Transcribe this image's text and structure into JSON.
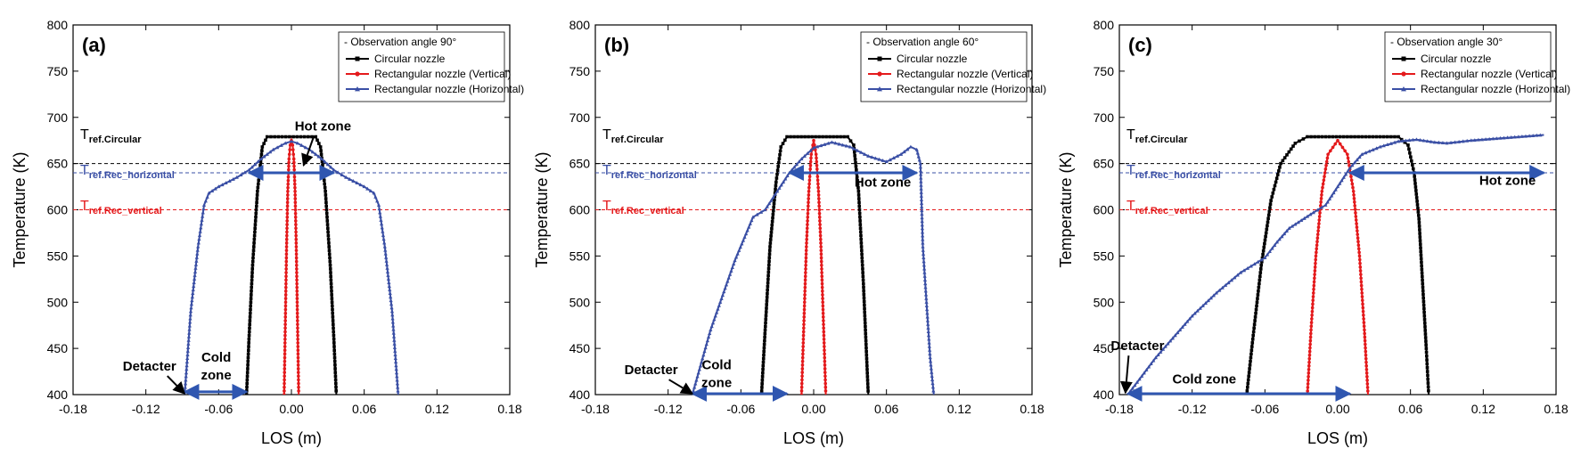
{
  "chart_data": [
    {
      "type": "line",
      "panel_label": "(a)",
      "xlabel": "LOS (m)",
      "ylabel": "Temperature (K)",
      "xlim": [
        -0.18,
        0.18
      ],
      "ylim": [
        400,
        800
      ],
      "xticks": [
        "-0.18",
        "-0.12",
        "-0.06",
        "0.00",
        "0.06",
        "0.12",
        "0.18"
      ],
      "yticks": [
        "400",
        "450",
        "500",
        "550",
        "600",
        "650",
        "700",
        "750",
        "800"
      ],
      "grid": false,
      "legend_position": "top-right",
      "legend_title": "- Observation angle 90°",
      "series": [
        {
          "name": "Circular nozzle",
          "color": "#000000",
          "marker": "square",
          "points": [
            [
              -0.037,
              400
            ],
            [
              -0.035,
              460
            ],
            [
              -0.032,
              540
            ],
            [
              -0.028,
              620
            ],
            [
              -0.024,
              668
            ],
            [
              -0.02,
              679
            ],
            [
              0.02,
              679
            ],
            [
              0.024,
              668
            ],
            [
              0.028,
              620
            ],
            [
              0.032,
              540
            ],
            [
              0.035,
              460
            ],
            [
              0.037,
              400
            ]
          ]
        },
        {
          "name": "Rectangular nozzle (Vertical)",
          "color": "#e41a1c",
          "marker": "circle",
          "points": [
            [
              -0.006,
              400
            ],
            [
              -0.005,
              480
            ],
            [
              -0.004,
              560
            ],
            [
              -0.003,
              620
            ],
            [
              -0.002,
              655
            ],
            [
              -0.001,
              670
            ],
            [
              0.0,
              675
            ],
            [
              0.001,
              670
            ],
            [
              0.002,
              655
            ],
            [
              0.003,
              620
            ],
            [
              0.004,
              560
            ],
            [
              0.005,
              480
            ],
            [
              0.006,
              400
            ]
          ]
        },
        {
          "name": "Rectangular nozzle (Horizontal)",
          "color": "#3a4fa5",
          "marker": "triangle",
          "points": [
            [
              -0.088,
              400
            ],
            [
              -0.083,
              490
            ],
            [
              -0.077,
              560
            ],
            [
              -0.072,
              605
            ],
            [
              -0.068,
              618
            ],
            [
              -0.06,
              625
            ],
            [
              -0.045,
              635
            ],
            [
              -0.035,
              643
            ],
            [
              -0.025,
              655
            ],
            [
              -0.015,
              665
            ],
            [
              -0.005,
              672
            ],
            [
              0.0,
              674
            ],
            [
              0.005,
              672
            ],
            [
              0.015,
              665
            ],
            [
              0.025,
              655
            ],
            [
              0.035,
              643
            ],
            [
              0.045,
              635
            ],
            [
              0.06,
              625
            ],
            [
              0.068,
              618
            ],
            [
              0.072,
              605
            ],
            [
              0.077,
              560
            ],
            [
              0.083,
              490
            ],
            [
              0.088,
              400
            ]
          ]
        }
      ],
      "reference_lines": [
        {
          "label": "T",
          "sub": "ref.Circular",
          "y": 650,
          "color": "#000000"
        },
        {
          "label": "T",
          "sub": "ref.Rec_horizontal",
          "y": 640,
          "color": "#3a4fa5"
        },
        {
          "label": "T",
          "sub": "ref.Rec_vertical",
          "y": 600,
          "color": "#e41a1c"
        }
      ],
      "zones": [
        {
          "text": "Hot zone",
          "x_from": -0.035,
          "x_to": 0.035,
          "y": 640
        },
        {
          "text": "Cold zone",
          "x_from": -0.088,
          "x_to": -0.037,
          "y": 403
        }
      ],
      "annotations": [
        {
          "text": "Hot zone",
          "text_x": 0.026,
          "text_y": 686,
          "arrow_to": [
            0.01,
            648
          ]
        },
        {
          "text": "Detacter",
          "text_x": -0.117,
          "text_y": 426,
          "arrow_to": [
            -0.088,
            401
          ]
        },
        {
          "text": "Cold zone",
          "text_x": -0.062,
          "text_y": 428
        }
      ]
    },
    {
      "type": "line",
      "panel_label": "(b)",
      "xlabel": "LOS (m)",
      "ylabel": "Temperature (K)",
      "xlim": [
        -0.18,
        0.18
      ],
      "ylim": [
        400,
        800
      ],
      "xticks": [
        "-0.18",
        "-0.12",
        "-0.06",
        "0.00",
        "0.06",
        "0.12",
        "0.18"
      ],
      "yticks": [
        "400",
        "450",
        "500",
        "550",
        "600",
        "650",
        "700",
        "750",
        "800"
      ],
      "grid": false,
      "legend_position": "top-right",
      "legend_title": "- Observation angle 60°",
      "series": [
        {
          "name": "Circular nozzle",
          "color": "#000000",
          "marker": "square",
          "points": [
            [
              -0.043,
              400
            ],
            [
              -0.04,
              470
            ],
            [
              -0.036,
              560
            ],
            [
              -0.031,
              630
            ],
            [
              -0.027,
              668
            ],
            [
              -0.022,
              679
            ],
            [
              0.028,
              679
            ],
            [
              0.033,
              670
            ],
            [
              0.037,
              620
            ],
            [
              0.041,
              520
            ],
            [
              0.045,
              400
            ]
          ]
        },
        {
          "name": "Rectangular nozzle (Vertical)",
          "color": "#e41a1c",
          "marker": "circle",
          "points": [
            [
              -0.01,
              400
            ],
            [
              -0.008,
              480
            ],
            [
              -0.006,
              560
            ],
            [
              -0.004,
              620
            ],
            [
              -0.002,
              660
            ],
            [
              0.0,
              675
            ],
            [
              0.002,
              660
            ],
            [
              0.004,
              620
            ],
            [
              0.006,
              560
            ],
            [
              0.008,
              480
            ],
            [
              0.01,
              400
            ]
          ]
        },
        {
          "name": "Rectangular nozzle (Horizontal)",
          "color": "#3a4fa5",
          "marker": "triangle",
          "points": [
            [
              -0.1,
              400
            ],
            [
              -0.085,
              470
            ],
            [
              -0.065,
              545
            ],
            [
              -0.05,
              592
            ],
            [
              -0.04,
              600
            ],
            [
              -0.03,
              620
            ],
            [
              -0.02,
              640
            ],
            [
              -0.01,
              655
            ],
            [
              0.0,
              667
            ],
            [
              0.015,
              673
            ],
            [
              0.03,
              668
            ],
            [
              0.045,
              658
            ],
            [
              0.06,
              652
            ],
            [
              0.072,
              660
            ],
            [
              0.08,
              668
            ],
            [
              0.085,
              665
            ],
            [
              0.088,
              650
            ],
            [
              0.09,
              560
            ],
            [
              0.093,
              500
            ],
            [
              0.096,
              440
            ],
            [
              0.099,
              400
            ]
          ]
        }
      ],
      "reference_lines": [
        {
          "label": "T",
          "sub": "ref.Circular",
          "y": 650,
          "color": "#000000"
        },
        {
          "label": "T",
          "sub": "ref.Rec_horizontal",
          "y": 640,
          "color": "#3a4fa5"
        },
        {
          "label": "T",
          "sub": "ref.Rec_vertical",
          "y": 600,
          "color": "#e41a1c"
        }
      ],
      "zones": [
        {
          "text": "Hot zone",
          "x_from": -0.02,
          "x_to": 0.085,
          "y": 640
        },
        {
          "text": "Cold zone",
          "x_from": -0.1,
          "x_to": -0.022,
          "y": 401
        }
      ],
      "annotations": [
        {
          "text": "Hot zone",
          "text_x": 0.057,
          "text_y": 625
        },
        {
          "text": "Detacter",
          "text_x": -0.134,
          "text_y": 422,
          "arrow_to": [
            -0.1,
            401
          ]
        },
        {
          "text": "Cold zone",
          "text_x": -0.08,
          "text_y": 420
        }
      ]
    },
    {
      "type": "line",
      "panel_label": "(c)",
      "xlabel": "LOS (m)",
      "ylabel": "Temperature (K)",
      "xlim": [
        -0.18,
        0.18
      ],
      "ylim": [
        400,
        800
      ],
      "xticks": [
        "-0.18",
        "-0.12",
        "-0.06",
        "0.00",
        "0.06",
        "0.12",
        "0.18"
      ],
      "yticks": [
        "400",
        "450",
        "500",
        "550",
        "600",
        "650",
        "700",
        "750",
        "800"
      ],
      "grid": false,
      "legend_position": "top-right",
      "legend_title": "- Observation angle 30°",
      "series": [
        {
          "name": "Circular nozzle",
          "color": "#000000",
          "marker": "square",
          "points": [
            [
              -0.075,
              400
            ],
            [
              -0.07,
              460
            ],
            [
              -0.063,
              540
            ],
            [
              -0.055,
              610
            ],
            [
              -0.047,
              650
            ],
            [
              -0.035,
              672
            ],
            [
              -0.025,
              679
            ],
            [
              0.05,
              679
            ],
            [
              0.058,
              670
            ],
            [
              0.063,
              640
            ],
            [
              0.067,
              590
            ],
            [
              0.07,
              520
            ],
            [
              0.073,
              450
            ],
            [
              0.075,
              400
            ]
          ]
        },
        {
          "name": "Rectangular nozzle (Vertical)",
          "color": "#e41a1c",
          "marker": "circle",
          "points": [
            [
              -0.025,
              400
            ],
            [
              -0.022,
              470
            ],
            [
              -0.018,
              550
            ],
            [
              -0.013,
              620
            ],
            [
              -0.008,
              660
            ],
            [
              0.0,
              675
            ],
            [
              0.008,
              660
            ],
            [
              0.013,
              620
            ],
            [
              0.018,
              550
            ],
            [
              0.022,
              470
            ],
            [
              0.025,
              400
            ]
          ]
        },
        {
          "name": "Rectangular nozzle (Horizontal)",
          "color": "#3a4fa5",
          "marker": "triangle",
          "points": [
            [
              -0.173,
              400
            ],
            [
              -0.15,
              440
            ],
            [
              -0.12,
              485
            ],
            [
              -0.1,
              510
            ],
            [
              -0.08,
              532
            ],
            [
              -0.06,
              548
            ],
            [
              -0.05,
              565
            ],
            [
              -0.04,
              580
            ],
            [
              -0.02,
              597
            ],
            [
              -0.01,
              605
            ],
            [
              0.0,
              625
            ],
            [
              0.01,
              645
            ],
            [
              0.02,
              660
            ],
            [
              0.035,
              668
            ],
            [
              0.05,
              674
            ],
            [
              0.065,
              676
            ],
            [
              0.08,
              673
            ],
            [
              0.09,
              672
            ],
            [
              0.11,
              675
            ],
            [
              0.14,
              678
            ],
            [
              0.17,
              681
            ]
          ]
        }
      ],
      "reference_lines": [
        {
          "label": "T",
          "sub": "ref.Circular",
          "y": 650,
          "color": "#000000"
        },
        {
          "label": "T",
          "sub": "ref.Rec_horizontal",
          "y": 640,
          "color": "#3a4fa5"
        },
        {
          "label": "T",
          "sub": "ref.Rec_vertical",
          "y": 600,
          "color": "#e41a1c"
        }
      ],
      "zones": [
        {
          "text": "Hot zone",
          "x_from": 0.01,
          "x_to": 0.17,
          "y": 640
        },
        {
          "text": "Cold zone",
          "x_from": -0.173,
          "x_to": 0.01,
          "y": 401
        }
      ],
      "annotations": [
        {
          "text": "Hot zone",
          "text_x": 0.14,
          "text_y": 627
        },
        {
          "text": "Detacter",
          "text_x": -0.165,
          "text_y": 448,
          "arrow_to": [
            -0.175,
            402
          ]
        },
        {
          "text": "Cold zone",
          "text_x": -0.11,
          "text_y": 412
        }
      ]
    }
  ]
}
